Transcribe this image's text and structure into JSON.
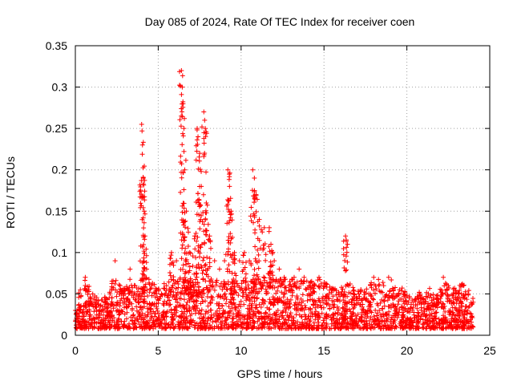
{
  "chart_data": {
    "type": "scatter",
    "title": "Day 085 of 2024, Rate Of TEC Index for receiver coen",
    "xlabel": "GPS time / hours",
    "ylabel": "ROTI / TECUs",
    "xlim": [
      0,
      25
    ],
    "ylim": [
      0,
      0.35
    ],
    "xticks": [
      "0",
      "5",
      "10",
      "15",
      "20",
      "25"
    ],
    "xtick_values": [
      0,
      5,
      10,
      15,
      20,
      25
    ],
    "yticks": [
      "0",
      "0.05",
      "0.1",
      "0.15",
      "0.2",
      "0.25",
      "0.3",
      "0.35"
    ],
    "ytick_values": [
      0,
      0.05,
      0.1,
      0.15,
      0.2,
      0.25,
      0.3,
      0.35
    ],
    "grid": true,
    "marker": "+",
    "color": "#ff0000",
    "series": [
      {
        "name": "ROTI",
        "x": [
          0.0,
          0.3,
          0.6,
          0.9,
          1.2,
          1.5,
          1.8,
          2.1,
          2.4,
          2.7,
          3.0,
          3.3,
          3.6,
          3.9,
          4.0,
          4.05,
          4.1,
          4.15,
          4.2,
          4.3,
          4.6,
          4.9,
          5.2,
          5.5,
          5.8,
          6.1,
          6.4,
          6.45,
          6.5,
          6.55,
          6.6,
          6.7,
          6.9,
          7.2,
          7.35,
          7.4,
          7.5,
          7.6,
          7.75,
          7.8,
          7.9,
          8.1,
          8.4,
          8.7,
          9.0,
          9.2,
          9.3,
          9.4,
          9.6,
          9.9,
          10.2,
          10.5,
          10.7,
          10.8,
          10.9,
          11.1,
          11.4,
          11.7,
          11.8,
          12.0,
          12.3,
          12.6,
          12.9,
          13.2,
          13.5,
          13.8,
          14.1,
          14.4,
          14.7,
          15.0,
          15.3,
          15.6,
          15.9,
          16.2,
          16.3,
          16.5,
          16.8,
          17.1,
          17.4,
          17.7,
          18.0,
          18.3,
          18.6,
          18.9,
          19.2,
          19.5,
          19.8,
          20.1,
          20.4,
          20.7,
          21.0,
          21.3,
          21.6,
          21.9,
          22.2,
          22.5,
          22.8,
          23.1,
          23.4,
          23.7,
          24.0
        ],
        "y": [
          0.03,
          0.055,
          0.07,
          0.045,
          0.04,
          0.035,
          0.04,
          0.05,
          0.09,
          0.06,
          0.05,
          0.08,
          0.06,
          0.05,
          0.255,
          0.23,
          0.19,
          0.15,
          0.12,
          0.08,
          0.06,
          0.05,
          0.05,
          0.06,
          0.1,
          0.09,
          0.32,
          0.3,
          0.28,
          0.25,
          0.2,
          0.15,
          0.1,
          0.12,
          0.25,
          0.24,
          0.22,
          0.18,
          0.27,
          0.26,
          0.16,
          0.12,
          0.09,
          0.08,
          0.09,
          0.2,
          0.18,
          0.15,
          0.1,
          0.09,
          0.1,
          0.09,
          0.2,
          0.19,
          0.17,
          0.14,
          0.13,
          0.13,
          0.11,
          0.09,
          0.08,
          0.07,
          0.06,
          0.07,
          0.08,
          0.07,
          0.06,
          0.06,
          0.07,
          0.06,
          0.05,
          0.055,
          0.05,
          0.05,
          0.12,
          0.06,
          0.05,
          0.05,
          0.045,
          0.05,
          0.07,
          0.06,
          0.06,
          0.07,
          0.05,
          0.05,
          0.05,
          0.04,
          0.04,
          0.045,
          0.04,
          0.05,
          0.045,
          0.04,
          0.07,
          0.06,
          0.05,
          0.05,
          0.06,
          0.05,
          0.04
        ]
      }
    ]
  }
}
